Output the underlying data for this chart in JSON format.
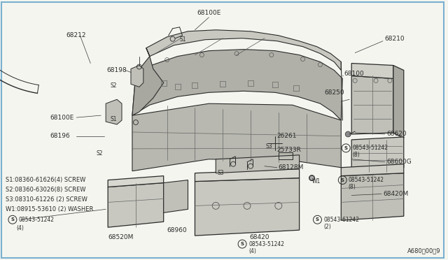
{
  "bg_color": "#f5f5f0",
  "border_color": "#7ab0d0",
  "line_color": "#2a2a2a",
  "fig_width": 6.4,
  "fig_height": 3.72,
  "dpi": 100,
  "diagram_code": "A680　00〇9",
  "screw_legend": [
    "S1:08360-61626(4) SCREW",
    "S2:08360-63026(8) SCREW",
    "S3:08310-61226 (2) SCREW",
    "W1:08915-53610 (2) WASHER"
  ]
}
